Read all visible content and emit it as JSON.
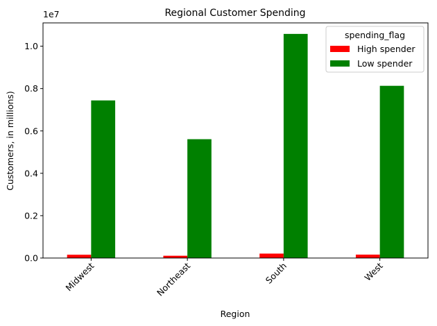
{
  "chart_data": {
    "type": "bar",
    "title": "Regional Customer Spending",
    "xlabel": "Region",
    "ylabel": "Customers, in millions)",
    "offset_label": "1e7",
    "categories": [
      "Midwest",
      "Northeast",
      "South",
      "West"
    ],
    "series": [
      {
        "name": "High spender",
        "color": "#ff0000",
        "values": [
          155000,
          108000,
          210000,
          160000
        ]
      },
      {
        "name": "Low spender",
        "color": "#008000",
        "values": [
          7440000,
          5610000,
          10580000,
          8130000
        ]
      }
    ],
    "ylim": [
      0,
      11100000
    ],
    "yticks": [
      0,
      2000000,
      4000000,
      6000000,
      8000000,
      10000000
    ],
    "ytick_labels": [
      "0.0",
      "0.2",
      "0.4",
      "0.6",
      "0.8",
      "1.0"
    ],
    "legend": {
      "title": "spending_flag",
      "placement": "top-right"
    },
    "grid": false
  }
}
